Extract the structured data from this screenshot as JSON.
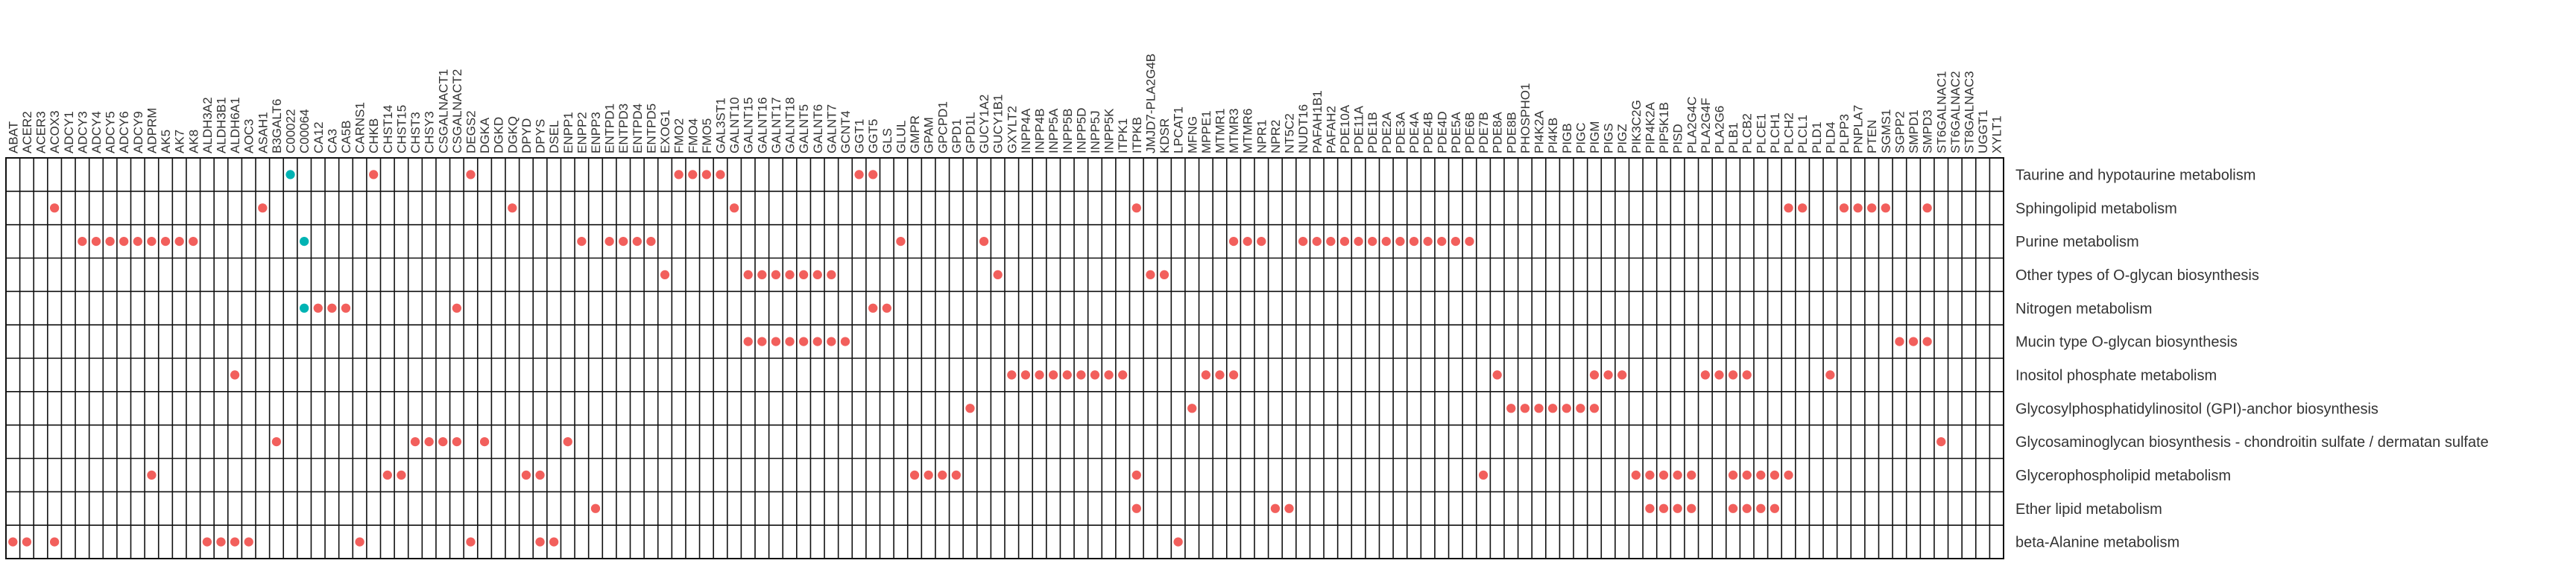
{
  "chart_data": {
    "type": "heatmap",
    "title": "",
    "xlabel": "",
    "ylabel": "",
    "grid": true,
    "legend": "none",
    "colors": {
      "red": "#f25f5c",
      "teal": "#00b3b3",
      "grid": "#111111",
      "background": "#ffffff"
    },
    "genes": [
      "ABAT",
      "ACER2",
      "ACER3",
      "ACOX3",
      "ADCY1",
      "ADCY3",
      "ADCY4",
      "ADCY5",
      "ADCY6",
      "ADCY9",
      "ADPRM",
      "AK5",
      "AK7",
      "AK8",
      "ALDH3A2",
      "ALDH3B1",
      "ALDH6A1",
      "AOC3",
      "ASAH1",
      "B3GALT6",
      "C00022",
      "C00064",
      "CA12",
      "CA3",
      "CA5B",
      "CARNS1",
      "CHKB",
      "CHST14",
      "CHST15",
      "CHST3",
      "CHSY3",
      "CSGALNACT1",
      "CSGALNACT2",
      "DEGS2",
      "DGKA",
      "DGKD",
      "DGKQ",
      "DPYD",
      "DPYS",
      "DSEL",
      "ENPP1",
      "ENPP2",
      "ENPP3",
      "ENTPD1",
      "ENTPD3",
      "ENTPD4",
      "ENTPD5",
      "EXOG1",
      "FMO2",
      "FMO4",
      "FMO5",
      "GAL3ST1",
      "GALNT10",
      "GALNT15",
      "GALNT16",
      "GALNT17",
      "GALNT18",
      "GALNT5",
      "GALNT6",
      "GALNT7",
      "GCNT4",
      "GGT1",
      "GGT5",
      "GLS",
      "GLUL",
      "GMPR",
      "GPAM",
      "GPCPD1",
      "GPD1",
      "GPD1L",
      "GUCY1A2",
      "GUCY1B1",
      "GXYLT2",
      "INPP4A",
      "INPP4B",
      "INPP5A",
      "INPP5B",
      "INPP5D",
      "INPP5J",
      "INPP5K",
      "ITPK1",
      "ITPKB",
      "JMJD7-PLA2G4B",
      "KDSR",
      "LPCAT1",
      "MFNG",
      "MPPE1",
      "MTMR1",
      "MTMR3",
      "MTMR6",
      "NPR1",
      "NPR2",
      "NT5C2",
      "NUDT16",
      "PAFAH1B1",
      "PAFAH2",
      "PDE10A",
      "PDE11A",
      "PDE1B",
      "PDE2A",
      "PDE3A",
      "PDE4A",
      "PDE4B",
      "PDE4D",
      "PDE5A",
      "PDE6B",
      "PDE7B",
      "PDE8A",
      "PDE8B",
      "PHOSPHO1",
      "PI4K2A",
      "PI4KB",
      "PIGB",
      "PIGC",
      "PIGM",
      "PIGS",
      "PIGZ",
      "PIK3C2G",
      "PIP4K2A",
      "PIP5K1B",
      "PISD",
      "PLA2G4C",
      "PLA2G4F",
      "PLA2G6",
      "PLB1",
      "PLCB2",
      "PLCE1",
      "PLCH1",
      "PLCH2",
      "PLCL1",
      "PLD1",
      "PLD4",
      "PLPP3",
      "PNPLA7",
      "PTEN",
      "SGMS1",
      "SGPP2",
      "SMPD1",
      "SMPD3",
      "ST6GALNAC1",
      "ST6GALNAC2",
      "ST8GALNAC3",
      "UGGT1",
      "XYLT1"
    ],
    "pathways": [
      "Taurine and hypotaurine metabolism",
      "Sphingolipid metabolism",
      "Purine metabolism",
      "Other types of O-glycan biosynthesis",
      "Nitrogen metabolism",
      "Mucin type O-glycan biosynthesis",
      "Inositol phosphate metabolism",
      "Glycosylphosphatidylinositol (GPI)-anchor biosynthesis",
      "Glycosaminoglycan biosynthesis - chondroitin sulfate / dermatan sulfate",
      "Glycerophospholipid metabolism",
      "Ether lipid metabolism",
      "beta-Alanine metabolism"
    ],
    "cells": [
      {
        "row": 0,
        "col": 20,
        "color": "teal"
      },
      {
        "row": 0,
        "col": 26,
        "color": "red"
      },
      {
        "row": 0,
        "col": 33,
        "color": "red"
      },
      {
        "row": 0,
        "col": 48,
        "color": "red"
      },
      {
        "row": 0,
        "col": 49,
        "color": "red"
      },
      {
        "row": 0,
        "col": 50,
        "color": "red"
      },
      {
        "row": 0,
        "col": 51,
        "color": "red"
      },
      {
        "row": 0,
        "col": 61,
        "color": "red"
      },
      {
        "row": 0,
        "col": 62,
        "color": "red"
      },
      {
        "row": 1,
        "col": 3,
        "color": "red"
      },
      {
        "row": 1,
        "col": 18,
        "color": "red"
      },
      {
        "row": 1,
        "col": 36,
        "color": "red"
      },
      {
        "row": 1,
        "col": 52,
        "color": "red"
      },
      {
        "row": 1,
        "col": 81,
        "color": "red"
      },
      {
        "row": 1,
        "col": 128,
        "color": "red"
      },
      {
        "row": 1,
        "col": 129,
        "color": "red"
      },
      {
        "row": 1,
        "col": 132,
        "color": "red"
      },
      {
        "row": 1,
        "col": 133,
        "color": "red"
      },
      {
        "row": 1,
        "col": 134,
        "color": "red"
      },
      {
        "row": 1,
        "col": 135,
        "color": "red"
      },
      {
        "row": 1,
        "col": 138,
        "color": "red"
      },
      {
        "row": 2,
        "col": 5,
        "color": "red"
      },
      {
        "row": 2,
        "col": 6,
        "color": "red"
      },
      {
        "row": 2,
        "col": 7,
        "color": "red"
      },
      {
        "row": 2,
        "col": 8,
        "color": "red"
      },
      {
        "row": 2,
        "col": 9,
        "color": "red"
      },
      {
        "row": 2,
        "col": 10,
        "color": "red"
      },
      {
        "row": 2,
        "col": 11,
        "color": "red"
      },
      {
        "row": 2,
        "col": 12,
        "color": "red"
      },
      {
        "row": 2,
        "col": 13,
        "color": "red"
      },
      {
        "row": 2,
        "col": 21,
        "color": "teal"
      },
      {
        "row": 2,
        "col": 41,
        "color": "red"
      },
      {
        "row": 2,
        "col": 43,
        "color": "red"
      },
      {
        "row": 2,
        "col": 44,
        "color": "red"
      },
      {
        "row": 2,
        "col": 45,
        "color": "red"
      },
      {
        "row": 2,
        "col": 46,
        "color": "red"
      },
      {
        "row": 2,
        "col": 64,
        "color": "red"
      },
      {
        "row": 2,
        "col": 70,
        "color": "red"
      },
      {
        "row": 2,
        "col": 88,
        "color": "red"
      },
      {
        "row": 2,
        "col": 89,
        "color": "red"
      },
      {
        "row": 2,
        "col": 90,
        "color": "red"
      },
      {
        "row": 2,
        "col": 93,
        "color": "red"
      },
      {
        "row": 2,
        "col": 94,
        "color": "red"
      },
      {
        "row": 2,
        "col": 95,
        "color": "red"
      },
      {
        "row": 2,
        "col": 96,
        "color": "red"
      },
      {
        "row": 2,
        "col": 97,
        "color": "red"
      },
      {
        "row": 2,
        "col": 98,
        "color": "red"
      },
      {
        "row": 2,
        "col": 99,
        "color": "red"
      },
      {
        "row": 2,
        "col": 100,
        "color": "red"
      },
      {
        "row": 2,
        "col": 101,
        "color": "red"
      },
      {
        "row": 2,
        "col": 102,
        "color": "red"
      },
      {
        "row": 2,
        "col": 103,
        "color": "red"
      },
      {
        "row": 2,
        "col": 104,
        "color": "red"
      },
      {
        "row": 2,
        "col": 105,
        "color": "red"
      },
      {
        "row": 3,
        "col": 47,
        "color": "red"
      },
      {
        "row": 3,
        "col": 53,
        "color": "red"
      },
      {
        "row": 3,
        "col": 54,
        "color": "red"
      },
      {
        "row": 3,
        "col": 55,
        "color": "red"
      },
      {
        "row": 3,
        "col": 56,
        "color": "red"
      },
      {
        "row": 3,
        "col": 57,
        "color": "red"
      },
      {
        "row": 3,
        "col": 58,
        "color": "red"
      },
      {
        "row": 3,
        "col": 59,
        "color": "red"
      },
      {
        "row": 3,
        "col": 71,
        "color": "red"
      },
      {
        "row": 3,
        "col": 82,
        "color": "red"
      },
      {
        "row": 3,
        "col": 83,
        "color": "red"
      },
      {
        "row": 4,
        "col": 21,
        "color": "teal"
      },
      {
        "row": 4,
        "col": 22,
        "color": "red"
      },
      {
        "row": 4,
        "col": 23,
        "color": "red"
      },
      {
        "row": 4,
        "col": 24,
        "color": "red"
      },
      {
        "row": 4,
        "col": 32,
        "color": "red"
      },
      {
        "row": 4,
        "col": 62,
        "color": "red"
      },
      {
        "row": 4,
        "col": 63,
        "color": "red"
      },
      {
        "row": 5,
        "col": 53,
        "color": "red"
      },
      {
        "row": 5,
        "col": 54,
        "color": "red"
      },
      {
        "row": 5,
        "col": 55,
        "color": "red"
      },
      {
        "row": 5,
        "col": 56,
        "color": "red"
      },
      {
        "row": 5,
        "col": 57,
        "color": "red"
      },
      {
        "row": 5,
        "col": 58,
        "color": "red"
      },
      {
        "row": 5,
        "col": 59,
        "color": "red"
      },
      {
        "row": 5,
        "col": 60,
        "color": "red"
      },
      {
        "row": 5,
        "col": 136,
        "color": "red"
      },
      {
        "row": 5,
        "col": 137,
        "color": "red"
      },
      {
        "row": 5,
        "col": 138,
        "color": "red"
      },
      {
        "row": 6,
        "col": 16,
        "color": "red"
      },
      {
        "row": 6,
        "col": 72,
        "color": "red"
      },
      {
        "row": 6,
        "col": 73,
        "color": "red"
      },
      {
        "row": 6,
        "col": 74,
        "color": "red"
      },
      {
        "row": 6,
        "col": 75,
        "color": "red"
      },
      {
        "row": 6,
        "col": 76,
        "color": "red"
      },
      {
        "row": 6,
        "col": 77,
        "color": "red"
      },
      {
        "row": 6,
        "col": 78,
        "color": "red"
      },
      {
        "row": 6,
        "col": 79,
        "color": "red"
      },
      {
        "row": 6,
        "col": 80,
        "color": "red"
      },
      {
        "row": 6,
        "col": 86,
        "color": "red"
      },
      {
        "row": 6,
        "col": 87,
        "color": "red"
      },
      {
        "row": 6,
        "col": 88,
        "color": "red"
      },
      {
        "row": 6,
        "col": 107,
        "color": "red"
      },
      {
        "row": 6,
        "col": 114,
        "color": "red"
      },
      {
        "row": 6,
        "col": 115,
        "color": "red"
      },
      {
        "row": 6,
        "col": 116,
        "color": "red"
      },
      {
        "row": 6,
        "col": 122,
        "color": "red"
      },
      {
        "row": 6,
        "col": 123,
        "color": "red"
      },
      {
        "row": 6,
        "col": 124,
        "color": "red"
      },
      {
        "row": 6,
        "col": 125,
        "color": "red"
      },
      {
        "row": 6,
        "col": 131,
        "color": "red"
      },
      {
        "row": 7,
        "col": 69,
        "color": "red"
      },
      {
        "row": 7,
        "col": 85,
        "color": "red"
      },
      {
        "row": 7,
        "col": 108,
        "color": "red"
      },
      {
        "row": 7,
        "col": 109,
        "color": "red"
      },
      {
        "row": 7,
        "col": 110,
        "color": "red"
      },
      {
        "row": 7,
        "col": 111,
        "color": "red"
      },
      {
        "row": 7,
        "col": 112,
        "color": "red"
      },
      {
        "row": 7,
        "col": 113,
        "color": "red"
      },
      {
        "row": 7,
        "col": 114,
        "color": "red"
      },
      {
        "row": 8,
        "col": 19,
        "color": "red"
      },
      {
        "row": 8,
        "col": 29,
        "color": "red"
      },
      {
        "row": 8,
        "col": 30,
        "color": "red"
      },
      {
        "row": 8,
        "col": 31,
        "color": "red"
      },
      {
        "row": 8,
        "col": 32,
        "color": "red"
      },
      {
        "row": 8,
        "col": 34,
        "color": "red"
      },
      {
        "row": 8,
        "col": 40,
        "color": "red"
      },
      {
        "row": 8,
        "col": 139,
        "color": "red"
      },
      {
        "row": 9,
        "col": 10,
        "color": "red"
      },
      {
        "row": 9,
        "col": 27,
        "color": "red"
      },
      {
        "row": 9,
        "col": 28,
        "color": "red"
      },
      {
        "row": 9,
        "col": 37,
        "color": "red"
      },
      {
        "row": 9,
        "col": 38,
        "color": "red"
      },
      {
        "row": 9,
        "col": 65,
        "color": "red"
      },
      {
        "row": 9,
        "col": 66,
        "color": "red"
      },
      {
        "row": 9,
        "col": 67,
        "color": "red"
      },
      {
        "row": 9,
        "col": 68,
        "color": "red"
      },
      {
        "row": 9,
        "col": 81,
        "color": "red"
      },
      {
        "row": 9,
        "col": 106,
        "color": "red"
      },
      {
        "row": 9,
        "col": 117,
        "color": "red"
      },
      {
        "row": 9,
        "col": 118,
        "color": "red"
      },
      {
        "row": 9,
        "col": 119,
        "color": "red"
      },
      {
        "row": 9,
        "col": 120,
        "color": "red"
      },
      {
        "row": 9,
        "col": 121,
        "color": "red"
      },
      {
        "row": 9,
        "col": 124,
        "color": "red"
      },
      {
        "row": 9,
        "col": 125,
        "color": "red"
      },
      {
        "row": 9,
        "col": 126,
        "color": "red"
      },
      {
        "row": 9,
        "col": 127,
        "color": "red"
      },
      {
        "row": 9,
        "col": 128,
        "color": "red"
      },
      {
        "row": 10,
        "col": 42,
        "color": "red"
      },
      {
        "row": 10,
        "col": 81,
        "color": "red"
      },
      {
        "row": 10,
        "col": 91,
        "color": "red"
      },
      {
        "row": 10,
        "col": 92,
        "color": "red"
      },
      {
        "row": 10,
        "col": 118,
        "color": "red"
      },
      {
        "row": 10,
        "col": 119,
        "color": "red"
      },
      {
        "row": 10,
        "col": 120,
        "color": "red"
      },
      {
        "row": 10,
        "col": 121,
        "color": "red"
      },
      {
        "row": 10,
        "col": 124,
        "color": "red"
      },
      {
        "row": 10,
        "col": 125,
        "color": "red"
      },
      {
        "row": 10,
        "col": 126,
        "color": "red"
      },
      {
        "row": 10,
        "col": 127,
        "color": "red"
      },
      {
        "row": 11,
        "col": 0,
        "color": "red"
      },
      {
        "row": 11,
        "col": 1,
        "color": "red"
      },
      {
        "row": 11,
        "col": 3,
        "color": "red"
      },
      {
        "row": 11,
        "col": 14,
        "color": "red"
      },
      {
        "row": 11,
        "col": 15,
        "color": "red"
      },
      {
        "row": 11,
        "col": 16,
        "color": "red"
      },
      {
        "row": 11,
        "col": 17,
        "color": "red"
      },
      {
        "row": 11,
        "col": 25,
        "color": "red"
      },
      {
        "row": 11,
        "col": 33,
        "color": "red"
      },
      {
        "row": 11,
        "col": 38,
        "color": "red"
      },
      {
        "row": 11,
        "col": 39,
        "color": "red"
      },
      {
        "row": 11,
        "col": 84,
        "color": "red"
      }
    ]
  }
}
